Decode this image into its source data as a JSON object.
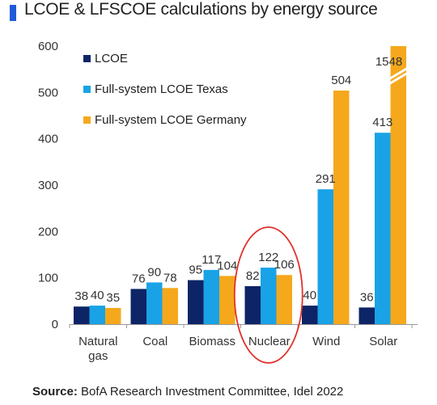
{
  "title": "LCOE & LFSCOE calculations by energy source",
  "source": {
    "label": "Source:",
    "text": "BofA Research Investment Committee,  Idel 2022"
  },
  "colors": {
    "accent": "#1f5bd8",
    "lcoe": "#0d2466",
    "texas": "#19a3e6",
    "germany": "#f5a81c",
    "axis": "#999999",
    "circle": "#e0312a"
  },
  "chart_data": {
    "type": "bar",
    "title": "LCOE & LFSCOE calculations by energy source",
    "xlabel": "",
    "ylabel": "",
    "ylim": [
      0,
      600
    ],
    "yticks": [
      0,
      100,
      200,
      300,
      400,
      500,
      600
    ],
    "categories": [
      "Natural\ngas",
      "Coal",
      "Biomass",
      "Nuclear",
      "Wind",
      "Solar"
    ],
    "series": [
      {
        "name": "LCOE",
        "values": [
          38,
          76,
          95,
          82,
          40,
          36
        ],
        "labels": [
          "38",
          "76",
          "95",
          "82",
          "40",
          "36"
        ]
      },
      {
        "name": "Full-system LCOE Texas",
        "values": [
          40,
          90,
          117,
          122,
          291,
          413
        ],
        "labels": [
          "40",
          "90",
          "117",
          "122",
          "291",
          "413"
        ]
      },
      {
        "name": "Full-system LCOE Germany",
        "values": [
          35,
          78,
          104,
          106,
          504,
          1548
        ],
        "labels": [
          "35",
          "78",
          "104",
          "106",
          "504",
          "1548"
        ]
      }
    ],
    "axis_break": {
      "series": 2,
      "category": 5
    },
    "highlight_category": "Nuclear",
    "legend": "top-left",
    "grid": false
  }
}
